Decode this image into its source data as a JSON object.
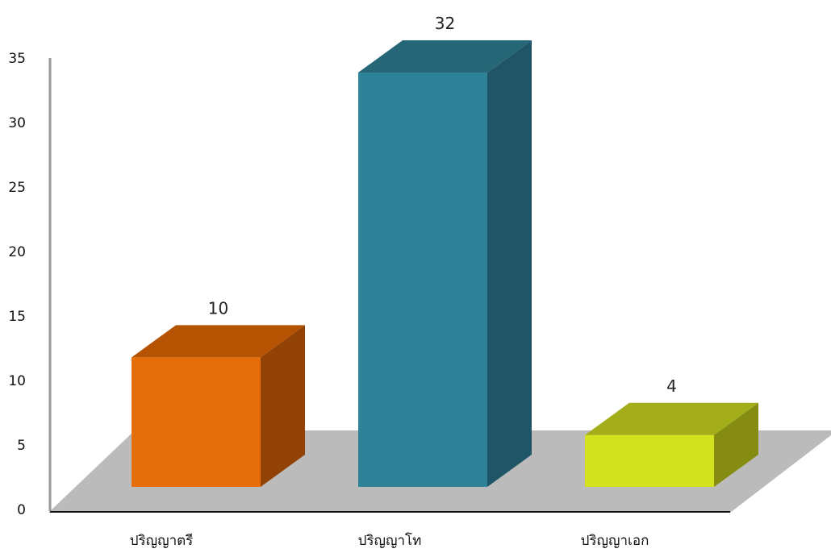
{
  "chart_data": {
    "type": "bar",
    "categories": [
      "ปริญญาตรี",
      "ปริญญาโท",
      "ปริญญาเอก"
    ],
    "values": [
      10,
      32,
      4
    ],
    "data_labels": [
      "10",
      "32",
      "4"
    ],
    "ylim": [
      0,
      35
    ],
    "yticks": [
      "0",
      "5",
      "10",
      "15",
      "20",
      "25",
      "30",
      "35"
    ],
    "style": "3d-column",
    "grid": false,
    "legend": "none",
    "colors": {
      "bars": [
        {
          "front": "#e56d0a",
          "top": "#b55303",
          "side": "#934205"
        },
        {
          "front": "#2e8398",
          "top": "#266777",
          "side": "#1f5566"
        },
        {
          "front": "#d2e21f",
          "top": "#a3ae1a",
          "side": "#868c12"
        }
      ],
      "floor": "#bbbbbb",
      "axis": "#999999",
      "baseline": "#111111"
    }
  }
}
